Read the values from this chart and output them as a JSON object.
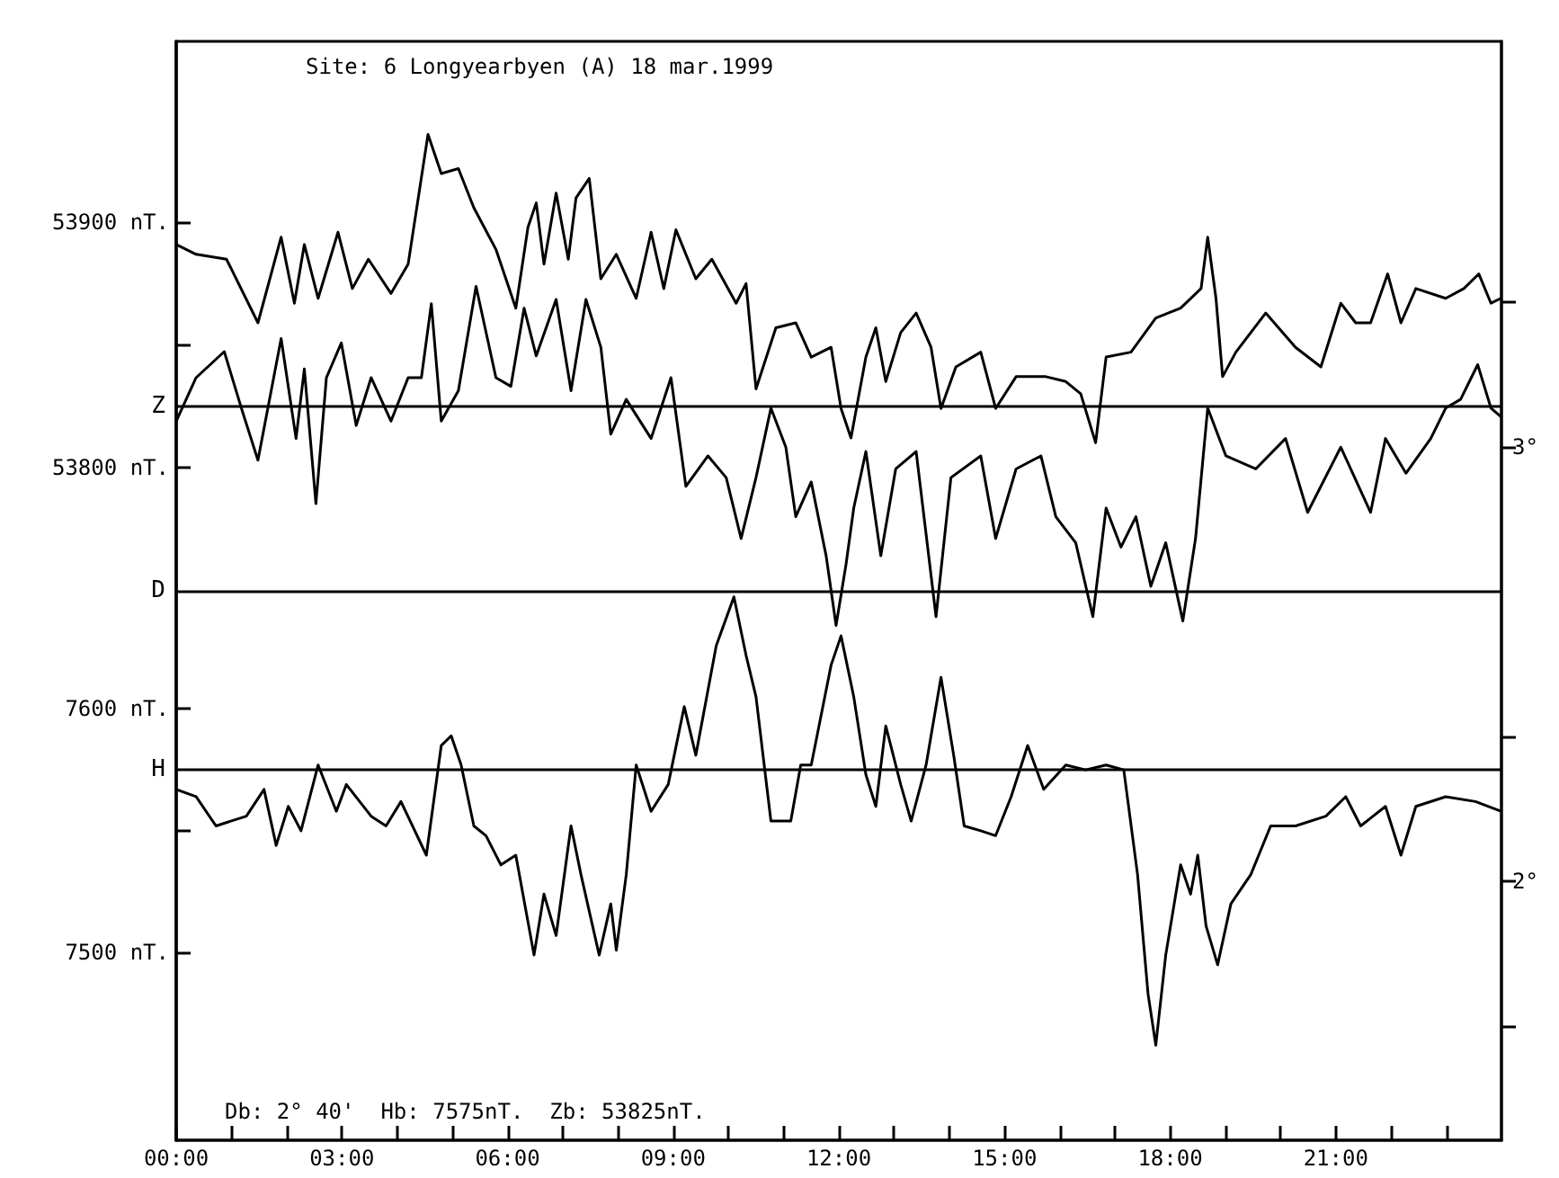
{
  "chart_data": {
    "type": "line",
    "title": "Site: 6 Longyearbyen (A) 18 mar.1999",
    "annotations": [
      "Db: 2° 40'  Hb: 7575nT.  Zb: 53825nT."
    ],
    "xlim": [
      0,
      24
    ],
    "xticks": [
      {
        "value": 0,
        "label": "00:00"
      },
      {
        "value": 1,
        "label": null
      },
      {
        "value": 2,
        "label": null
      },
      {
        "value": 3,
        "label": "03:00"
      },
      {
        "value": 4,
        "label": null
      },
      {
        "value": 5,
        "label": null
      },
      {
        "value": 6,
        "label": "06:00"
      },
      {
        "value": 7,
        "label": null
      },
      {
        "value": 8,
        "label": null
      },
      {
        "value": 9,
        "label": "09:00"
      },
      {
        "value": 10,
        "label": null
      },
      {
        "value": 11,
        "label": null
      },
      {
        "value": 12,
        "label": "12:00"
      },
      {
        "value": 13,
        "label": null
      },
      {
        "value": 14,
        "label": null
      },
      {
        "value": 15,
        "label": "15:00"
      },
      {
        "value": 16,
        "label": null
      },
      {
        "value": 17,
        "label": null
      },
      {
        "value": 18,
        "label": "18:00"
      },
      {
        "value": 19,
        "label": null
      },
      {
        "value": 20,
        "label": null
      },
      {
        "value": 21,
        "label": "21:00"
      },
      {
        "value": 22,
        "label": null
      },
      {
        "value": 23,
        "label": null
      }
    ],
    "ylim": [
      53525,
      53974
    ],
    "yticks": [
      {
        "value": 53900,
        "label": "53900 nT."
      },
      {
        "value": 53850,
        "label": null
      },
      {
        "value": 53800,
        "label": "53800 nT."
      }
    ],
    "y2lim": [
      1.405,
      3.934
    ],
    "y2ticks": [
      {
        "value": 3.333,
        "label": null
      },
      {
        "value": 3,
        "label": "3°"
      },
      {
        "value": 2.333,
        "label": null
      },
      {
        "value": 2,
        "label": "2°"
      },
      {
        "value": 1.667,
        "label": null
      }
    ],
    "y3lim": [
      7423,
      7874
    ],
    "y3ticks": [
      {
        "value": 7600,
        "label": "7600 nT."
      },
      {
        "value": 7550,
        "label": null
      },
      {
        "value": 7500,
        "label": "7500 nT."
      }
    ],
    "ref_lines": [
      {
        "axis": "y",
        "value": 53825,
        "label": "Z"
      },
      {
        "axis": "y2",
        "value": 2.667,
        "label": "D"
      },
      {
        "axis": "y3",
        "value": 7575,
        "label": "H"
      }
    ],
    "marker": "none",
    "line_style": "solid",
    "series": [
      {
        "color": "#000000",
        "axis": "y",
        "x": [
          0,
          0.36,
          0.91,
          1.48,
          1.9,
          2.14,
          2.32,
          2.57,
          2.93,
          3.19,
          3.48,
          3.89,
          4.2,
          4.56,
          4.8,
          5.11,
          5.39,
          5.79,
          6.15,
          6.37,
          6.52,
          6.66,
          6.88,
          7.1,
          7.24,
          7.48,
          7.69,
          7.97,
          8.33,
          8.6,
          8.83,
          9.05,
          9.41,
          9.7,
          10.14,
          10.32,
          10.5,
          10.86,
          11.22,
          11.5,
          11.86,
          12.04,
          12.22,
          12.49,
          12.67,
          12.85,
          13.12,
          13.4,
          13.67,
          13.85,
          14.12,
          14.57,
          14.84,
          15.21,
          15.75,
          16.11,
          16.38,
          16.65,
          16.84,
          17.29,
          17.74,
          18.19,
          18.56,
          18.68,
          18.83,
          18.95,
          19.19,
          19.73,
          20.27,
          20.73,
          21.09,
          21.36,
          21.63,
          21.94,
          22.18,
          22.45,
          22.99,
          23.32,
          23.59,
          23.81,
          23.99
        ],
        "values": [
          53891,
          53887,
          53885,
          53859,
          53894,
          53867,
          53891,
          53869,
          53896,
          53873,
          53885,
          53871,
          53883,
          53936,
          53920,
          53922,
          53906,
          53889,
          53865,
          53898,
          53908,
          53883,
          53912,
          53885,
          53910,
          53918,
          53877,
          53887,
          53869,
          53896,
          53873,
          53897,
          53877,
          53885,
          53867,
          53875,
          53832,
          53857,
          53859,
          53845,
          53849,
          53824,
          53812,
          53845,
          53857,
          53835,
          53855,
          53863,
          53849,
          53824,
          53841,
          53847,
          53824,
          53837,
          53837,
          53835,
          53830,
          53810,
          53845,
          53847,
          53861,
          53865,
          53873,
          53894,
          53869,
          53837,
          53847,
          53863,
          53849,
          53841,
          53867,
          53859,
          53859,
          53879,
          53859,
          53873,
          53869,
          53873,
          53879,
          53867,
          53869
        ]
      },
      {
        "color": "#000000",
        "axis": "y2",
        "x": [
          0,
          0.36,
          0.87,
          1.18,
          1.48,
          1.9,
          2.17,
          2.32,
          2.53,
          2.72,
          2.99,
          3.26,
          3.53,
          3.89,
          4.2,
          4.44,
          4.62,
          4.8,
          5.11,
          5.43,
          5.79,
          6.06,
          6.3,
          6.52,
          6.88,
          7.15,
          7.42,
          7.69,
          7.87,
          8.15,
          8.6,
          8.96,
          9.23,
          9.63,
          9.96,
          10.23,
          10.5,
          10.77,
          11.04,
          11.22,
          11.5,
          11.77,
          11.95,
          12.13,
          12.27,
          12.49,
          12.76,
          13.03,
          13.4,
          13.76,
          14.03,
          14.57,
          14.84,
          15.21,
          15.66,
          15.93,
          16.29,
          16.6,
          16.84,
          17.11,
          17.38,
          17.65,
          17.92,
          18.23,
          18.46,
          18.68,
          19.01,
          19.55,
          20.09,
          20.49,
          21.09,
          21.63,
          21.9,
          22.27,
          22.72,
          22.99,
          23.26,
          23.57,
          23.81,
          23.99
        ],
        "values": [
          3.06,
          3.16,
          3.22,
          3.09,
          2.97,
          3.25,
          3.02,
          3.18,
          2.87,
          3.16,
          3.24,
          3.05,
          3.16,
          3.06,
          3.16,
          3.16,
          3.33,
          3.06,
          3.13,
          3.37,
          3.16,
          3.14,
          3.32,
          3.21,
          3.34,
          3.13,
          3.34,
          3.23,
          3.03,
          3.11,
          3.02,
          3.16,
          2.91,
          2.98,
          2.93,
          2.79,
          2.93,
          3.09,
          3.0,
          2.84,
          2.92,
          2.75,
          2.59,
          2.73,
          2.86,
          2.99,
          2.75,
          2.95,
          2.99,
          2.61,
          2.93,
          2.98,
          2.79,
          2.95,
          2.98,
          2.84,
          2.78,
          2.61,
          2.86,
          2.77,
          2.84,
          2.68,
          2.78,
          2.6,
          2.79,
          3.09,
          2.98,
          2.95,
          3.02,
          2.85,
          3.0,
          2.85,
          3.02,
          2.94,
          3.02,
          3.09,
          3.11,
          3.19,
          3.09,
          3.07
        ]
      },
      {
        "color": "#000000",
        "axis": "y3",
        "x": [
          0,
          0.36,
          0.72,
          1.27,
          1.59,
          1.81,
          2.03,
          2.26,
          2.57,
          2.9,
          3.08,
          3.53,
          3.8,
          4.07,
          4.53,
          4.8,
          4.98,
          5.16,
          5.39,
          5.61,
          5.88,
          6.15,
          6.48,
          6.66,
          6.88,
          7.15,
          7.33,
          7.66,
          7.87,
          7.97,
          8.15,
          8.33,
          8.6,
          8.91,
          9.2,
          9.41,
          9.78,
          10.1,
          10.32,
          10.5,
          10.77,
          11.13,
          11.31,
          11.5,
          11.86,
          12.04,
          12.27,
          12.49,
          12.67,
          12.85,
          13.12,
          13.31,
          13.58,
          13.85,
          14.08,
          14.27,
          14.57,
          14.84,
          15.12,
          15.42,
          15.71,
          16.11,
          16.47,
          16.84,
          17.16,
          17.41,
          17.6,
          17.74,
          17.92,
          18.19,
          18.37,
          18.5,
          18.65,
          18.86,
          19.1,
          19.46,
          19.82,
          20.27,
          20.82,
          21.18,
          21.45,
          21.9,
          22.18,
          22.45,
          22.99,
          23.53,
          23.99
        ],
        "values": [
          7567,
          7564,
          7552,
          7556,
          7567,
          7544,
          7560,
          7550,
          7577,
          7558,
          7569,
          7556,
          7552,
          7562,
          7540,
          7585,
          7589,
          7577,
          7552,
          7548,
          7536,
          7540,
          7499,
          7524,
          7507,
          7552,
          7532,
          7499,
          7520,
          7501,
          7532,
          7577,
          7558,
          7569,
          7601,
          7581,
          7626,
          7646,
          7622,
          7605,
          7554,
          7554,
          7577,
          7577,
          7618,
          7630,
          7605,
          7573,
          7560,
          7593,
          7569,
          7554,
          7577,
          7613,
          7581,
          7552,
          7550,
          7548,
          7564,
          7585,
          7567,
          7577,
          7575,
          7577,
          7575,
          7532,
          7483,
          7462,
          7499,
          7536,
          7524,
          7540,
          7511,
          7495,
          7520,
          7532,
          7552,
          7552,
          7556,
          7564,
          7552,
          7560,
          7540,
          7560,
          7564,
          7562,
          7558
        ]
      }
    ]
  }
}
